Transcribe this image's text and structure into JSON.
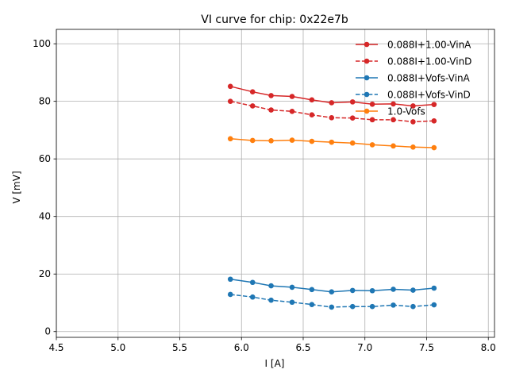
{
  "chart_data": {
    "type": "line",
    "title": "VI curve for chip: 0x22e7b",
    "xlabel": "I [A]",
    "ylabel": "V [mV]",
    "xlim": [
      4.5,
      8.05
    ],
    "ylim": [
      -2,
      105
    ],
    "xticks": [
      "4.5",
      "5.0",
      "5.5",
      "6.0",
      "6.5",
      "7.0",
      "7.5",
      "8.0"
    ],
    "yticks": [
      "0",
      "20",
      "40",
      "60",
      "80",
      "100"
    ],
    "grid": true,
    "legend_position": "top-right",
    "x": [
      5.91,
      6.09,
      6.24,
      6.41,
      6.57,
      6.73,
      6.9,
      7.06,
      7.23,
      7.39,
      7.56
    ],
    "series": [
      {
        "name": "0.088I+1.00-VinA",
        "color": "#d62728",
        "dash": false,
        "values": [
          85.2,
          83.3,
          82.0,
          81.7,
          80.5,
          79.5,
          79.8,
          79.0,
          79.1,
          78.4,
          78.9
        ]
      },
      {
        "name": "0.088I+1.00-VinD",
        "color": "#d62728",
        "dash": true,
        "values": [
          80.0,
          78.4,
          77.0,
          76.5,
          75.3,
          74.3,
          74.2,
          73.6,
          73.6,
          72.9,
          73.2
        ]
      },
      {
        "name": "0.088I+Vofs-VinA",
        "color": "#1f77b4",
        "dash": false,
        "values": [
          18.2,
          17.1,
          15.9,
          15.4,
          14.6,
          13.8,
          14.3,
          14.2,
          14.7,
          14.4,
          15.1
        ]
      },
      {
        "name": "0.088I+Vofs-VinD",
        "color": "#1f77b4",
        "dash": true,
        "values": [
          12.9,
          12.0,
          10.9,
          10.2,
          9.4,
          8.5,
          8.7,
          8.7,
          9.2,
          8.7,
          9.3
        ]
      },
      {
        "name": "1.0-Vofs",
        "color": "#ff7f0e",
        "dash": false,
        "values": [
          67.0,
          66.4,
          66.3,
          66.5,
          66.1,
          65.8,
          65.5,
          64.9,
          64.5,
          64.1,
          63.9
        ]
      }
    ]
  }
}
